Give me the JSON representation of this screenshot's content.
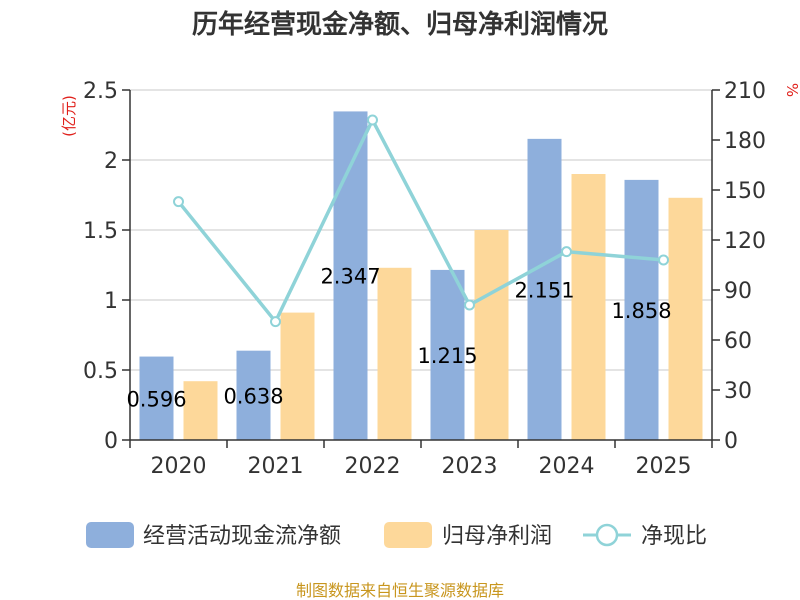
{
  "title": "历年经营现金净额、归母净利润情况",
  "left_unit": "(亿元)",
  "right_unit": "%",
  "source": "制图数据来自恒生聚源数据库",
  "colors": {
    "cash_flow": "#8eafdc",
    "net_profit": "#fdd89a",
    "ratio": "#8fd3d8",
    "grid": "#c8c8c8",
    "axis": "#333333",
    "unit": "#e0201b",
    "source": "#c8961e"
  },
  "chart_data": {
    "type": "bar",
    "title": "历年经营现金净额、归母净利润情况",
    "categories": [
      "2020",
      "2021",
      "2022",
      "2023",
      "2024",
      "2025"
    ],
    "ylim": [
      0,
      2.5
    ],
    "y_ticks": [
      "0",
      "0.5",
      "1",
      "1.5",
      "2",
      "2.5"
    ],
    "y2lim": [
      0,
      210
    ],
    "y2_ticks": [
      "0",
      "30",
      "60",
      "90",
      "120",
      "150",
      "180",
      "210"
    ],
    "ylabel": "(亿元)",
    "y2label": "%",
    "grid": true,
    "legend_position": "bottom",
    "series": [
      {
        "name": "经营活动现金流净额",
        "type": "bar",
        "axis": "left",
        "values": [
          0.596,
          0.638,
          2.347,
          1.215,
          2.151,
          1.858
        ],
        "labels": [
          "0.596",
          "0.638",
          "2.347",
          "1.215",
          "2.151",
          "1.858"
        ]
      },
      {
        "name": "归母净利润",
        "type": "bar",
        "axis": "left",
        "values": [
          0.42,
          0.91,
          1.23,
          1.5,
          1.9,
          1.73
        ]
      },
      {
        "name": "净现比",
        "type": "line",
        "axis": "right",
        "values": [
          143,
          71,
          192,
          81,
          113,
          108
        ]
      }
    ]
  }
}
